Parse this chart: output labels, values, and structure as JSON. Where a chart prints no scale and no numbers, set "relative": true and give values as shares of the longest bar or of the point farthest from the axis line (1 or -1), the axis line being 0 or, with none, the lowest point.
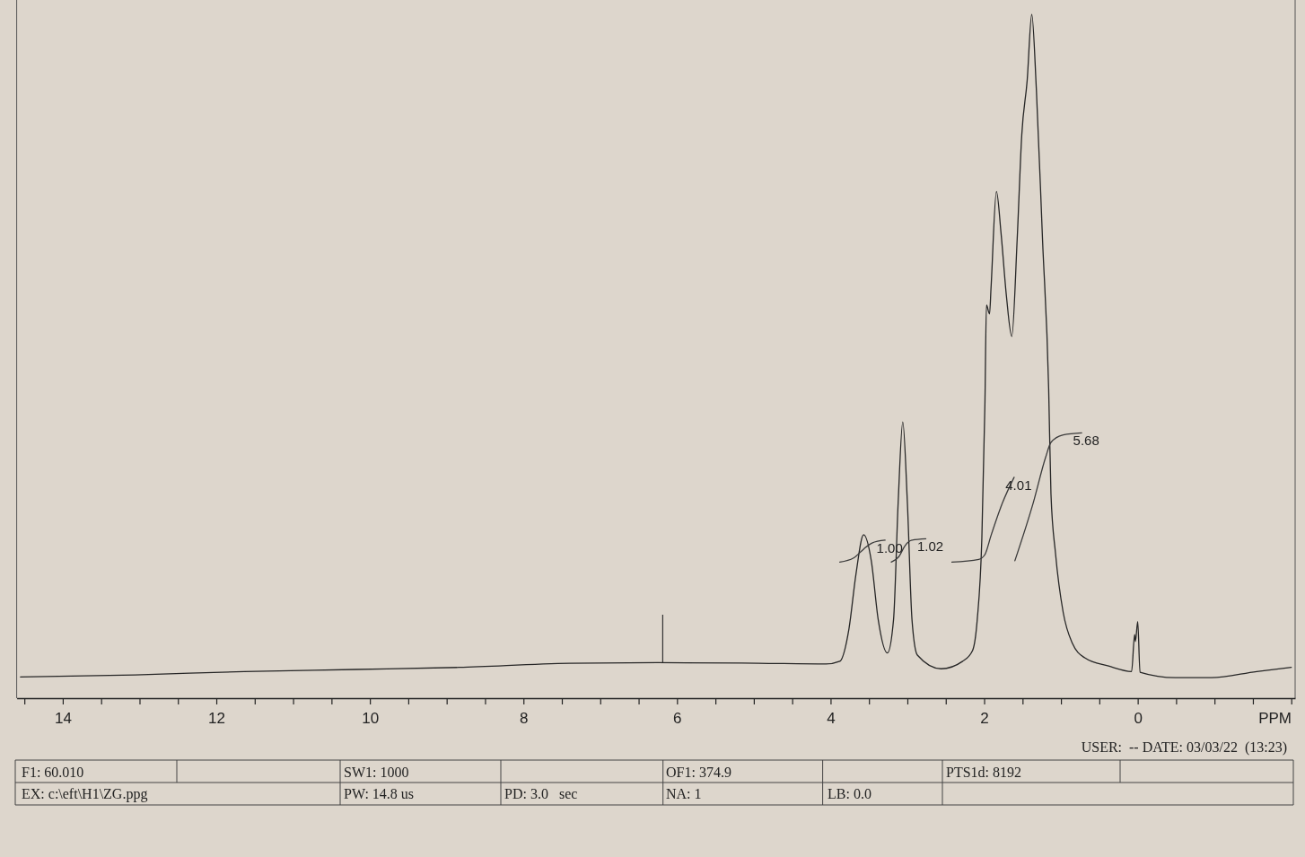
{
  "chart_data": {
    "type": "line",
    "relative": true,
    "xlabel": "PPM",
    "xlim": [
      14.6,
      -2.05
    ],
    "xticks": [
      {
        "value": 14.5,
        "label": null
      },
      14,
      {
        "value": 13.5,
        "label": null
      },
      {
        "value": 13,
        "label": null
      },
      {
        "value": 12.5,
        "label": null
      },
      12,
      {
        "value": 11.5,
        "label": null
      },
      {
        "value": 11,
        "label": null
      },
      {
        "value": 10.5,
        "label": null
      },
      10,
      {
        "value": 9.5,
        "label": null
      },
      {
        "value": 9,
        "label": null
      },
      {
        "value": 8.5,
        "label": null
      },
      8,
      {
        "value": 7.5,
        "label": null
      },
      {
        "value": 7,
        "label": null
      },
      {
        "value": 6.5,
        "label": null
      },
      6,
      {
        "value": 5.5,
        "label": null
      },
      {
        "value": 5,
        "label": null
      },
      {
        "value": 4.5,
        "label": null
      },
      4,
      {
        "value": 3.5,
        "label": null
      },
      {
        "value": 3,
        "label": null
      },
      {
        "value": 2.5,
        "label": null
      },
      2,
      {
        "value": 1.5,
        "label": null
      },
      {
        "value": 1,
        "label": null
      },
      {
        "value": 0.5,
        "label": null
      },
      0,
      {
        "value": -0.5,
        "label": null
      },
      {
        "value": -1,
        "label": null
      },
      {
        "value": -1.5,
        "label": null
      },
      {
        "value": -2,
        "label": null
      }
    ],
    "series": [
      {
        "color": "#262626",
        "x": [
          14.55,
          13.06,
          11.64,
          10.18,
          8.84,
          7.4,
          6.25,
          4.94,
          4.06,
          3.88,
          3.76,
          3.67,
          3.57,
          3.47,
          3.38,
          3.26,
          3.18,
          3.12,
          3.06,
          3.0,
          2.94,
          2.87,
          2.56,
          2.28,
          2.15,
          2.09,
          2.03,
          1.99,
          1.97,
          1.93,
          1.91,
          1.84,
          1.78,
          1.71,
          1.64,
          1.57,
          1.51,
          1.44,
          1.38,
          1.32,
          1.24,
          1.16,
          1.13,
          1.07,
          0.97,
          0.85,
          0.69,
          0.38,
          0.08,
          0.04,
          0.03,
          0.0,
          -0.03,
          -0.49,
          -0.96,
          -1.55,
          -2.0
        ],
        "values": [
          0.031,
          0.034,
          0.039,
          0.042,
          0.045,
          0.051,
          0.052,
          0.051,
          0.05,
          0.054,
          0.102,
          0.181,
          0.239,
          0.201,
          0.115,
          0.066,
          0.115,
          0.286,
          0.404,
          0.286,
          0.115,
          0.063,
          0.043,
          0.054,
          0.07,
          0.115,
          0.234,
          0.43,
          0.575,
          0.562,
          0.601,
          0.741,
          0.68,
          0.588,
          0.529,
          0.671,
          0.824,
          0.903,
          1.0,
          0.89,
          0.671,
          0.453,
          0.299,
          0.211,
          0.125,
          0.08,
          0.059,
          0.047,
          0.039,
          0.093,
          0.083,
          0.112,
          0.038,
          0.03,
          0.03,
          0.039,
          0.045
        ]
      },
      {
        "color": "#3a3a3a",
        "x": [
          3.88,
          3.7,
          3.57,
          3.46,
          3.29
        ],
        "values": [
          0.199,
          0.205,
          0.218,
          0.227,
          0.231
        ]
      },
      {
        "color": "#3a3a3a",
        "x": [
          3.21,
          3.11,
          3.03,
          2.94,
          2.76
        ],
        "values": [
          0.199,
          0.207,
          0.223,
          0.231,
          0.233
        ]
      },
      {
        "color": "#3a3a3a",
        "x": [
          2.42,
          2.07,
          1.99,
          1.91,
          1.76,
          1.61
        ],
        "values": [
          0.199,
          0.203,
          0.21,
          0.238,
          0.286,
          0.323
        ]
      },
      {
        "color": "#3a3a3a",
        "x": [
          1.6,
          1.36,
          1.2,
          1.13,
          0.97,
          0.73
        ],
        "values": [
          0.201,
          0.286,
          0.352,
          0.374,
          0.385,
          0.388
        ]
      }
    ],
    "annotations": [
      {
        "text": "1.00",
        "x": 3.29,
        "y": 0.231
      },
      {
        "text": "1.02",
        "x": 2.76,
        "y": 0.233
      },
      {
        "text": "4.01",
        "x": 1.61,
        "y": 0.323
      },
      {
        "text": "5.68",
        "x": 0.73,
        "y": 0.388
      },
      "USER:  -- DATE: 03/03/22  (13:23)",
      "F1: 60.010",
      "SW1: 1000",
      "OF1: 374.9",
      "PTS1d: 8192",
      "EX: c:\\eft\\H1\\ZG.ppg",
      "PW: 14.8 us",
      "PD: 3.0   sec",
      "NA: 1",
      "LB: 0.0"
    ]
  }
}
